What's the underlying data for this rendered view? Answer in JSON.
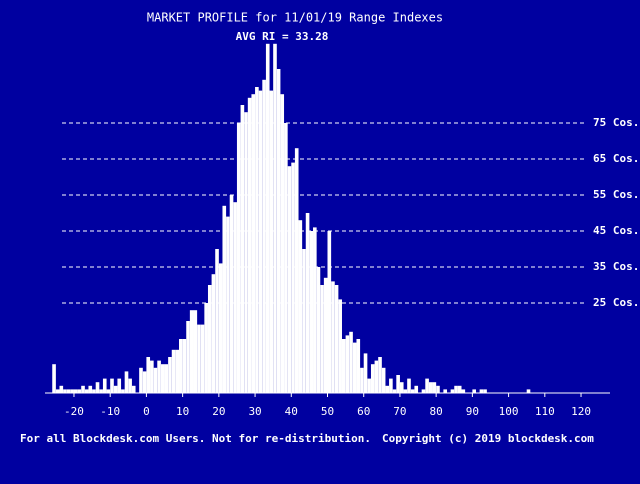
{
  "chart_data": {
    "type": "histogram",
    "title": "MARKET PROFILE for 11/01/19 Range Indexes",
    "subtitle": "AVG RI = 33.28",
    "footer_left": "For all Blockdesk.com Users. Not for re-distribution.",
    "footer_right": "Copyright (c) 2019 blockdesk.com",
    "color": "#ffffff",
    "bins": [
      -26,
      -25,
      -24,
      -23,
      -22,
      -21,
      -20,
      -19,
      -18,
      -17,
      -16,
      -15,
      -14,
      -13,
      -12,
      -11,
      -10,
      -9,
      -8,
      -7,
      -6,
      -5,
      -4,
      -3,
      -2,
      -1,
      0,
      1,
      2,
      3,
      4,
      5,
      6,
      7,
      8,
      9,
      10,
      11,
      12,
      13,
      14,
      15,
      16,
      17,
      18,
      19,
      20,
      21,
      22,
      23,
      24,
      25,
      26,
      27,
      28,
      29,
      30,
      31,
      32,
      33,
      34,
      35,
      36,
      37,
      38,
      39,
      40,
      41,
      42,
      43,
      44,
      45,
      46,
      47,
      48,
      49,
      50,
      51,
      52,
      53,
      54,
      55,
      56,
      57,
      58,
      59,
      60,
      61,
      62,
      63,
      64,
      65,
      66,
      67,
      68,
      69,
      70,
      71,
      72,
      73,
      74,
      75,
      76,
      77,
      78,
      79,
      80,
      81,
      82,
      83,
      84,
      85,
      86,
      87,
      88,
      89,
      90,
      91,
      92,
      93,
      94,
      95,
      96,
      97,
      98,
      99,
      100,
      101,
      102,
      103,
      104,
      105,
      106
    ],
    "values": [
      8,
      1,
      2,
      1,
      1,
      1,
      1,
      1,
      2,
      1,
      2,
      1,
      3,
      1,
      4,
      1,
      4,
      2,
      4,
      1,
      6,
      4,
      2,
      0,
      7,
      6,
      10,
      9,
      7,
      9,
      8,
      8,
      10,
      12,
      12,
      15,
      15,
      20,
      23,
      23,
      19,
      19,
      25,
      30,
      33,
      40,
      36,
      52,
      49,
      55,
      53,
      75,
      80,
      78,
      82,
      83,
      85,
      84,
      87,
      97,
      84,
      97,
      90,
      83,
      75,
      63,
      64,
      68,
      48,
      40,
      50,
      45,
      46,
      35,
      30,
      32,
      45,
      31,
      30,
      26,
      15,
      16,
      17,
      14,
      15,
      7,
      11,
      4,
      8,
      9,
      10,
      7,
      2,
      4,
      1,
      5,
      3,
      1,
      4,
      1,
      2,
      0,
      1,
      4,
      3,
      3,
      2,
      0,
      1,
      0,
      1,
      2,
      2,
      1,
      0,
      0,
      1,
      0,
      1,
      1,
      0,
      0,
      0,
      0,
      0,
      0,
      0,
      0,
      0,
      0,
      0,
      1
    ],
    "xlim": [
      -28,
      128
    ],
    "xticks": [
      -20,
      -10,
      0,
      10,
      20,
      30,
      40,
      50,
      60,
      70,
      80,
      90,
      100,
      110,
      120
    ],
    "ylim": [
      0,
      100
    ],
    "yticks": [
      {
        "value": 25,
        "label": "25 Cos."
      },
      {
        "value": 35,
        "label": "35 Cos."
      },
      {
        "value": 45,
        "label": "45 Cos."
      },
      {
        "value": 55,
        "label": "55 Cos."
      },
      {
        "value": 65,
        "label": "65 Cos."
      },
      {
        "value": 75,
        "label": "75 Cos."
      }
    ],
    "grid": true
  }
}
